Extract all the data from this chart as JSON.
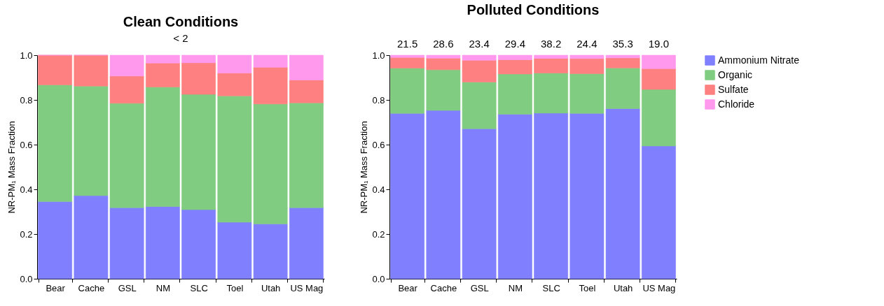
{
  "chart_data": [
    {
      "type": "bar",
      "stacked": true,
      "title": "Clean Conditions",
      "annotations": [
        "< 2"
      ],
      "ylabel": "NR-PM₁ Mass Fraction",
      "categories": [
        "Bear",
        "Cache",
        "GSL",
        "NM",
        "SLC",
        "Toel",
        "Utah",
        "US Mag"
      ],
      "ylim": [
        0,
        1
      ],
      "yticks": [
        {
          "value": 0,
          "label": "0.0"
        },
        {
          "value": 0.2,
          "label": "0.2"
        },
        {
          "value": 0.4,
          "label": "0.4"
        },
        {
          "value": 0.6,
          "label": "0.6"
        },
        {
          "value": 0.8,
          "label": "0.8"
        },
        {
          "value": 1,
          "label": "1.0"
        }
      ],
      "grid": false,
      "legend": "right",
      "series": [
        {
          "name": "Ammonium Nitrate",
          "color": "#8080ff",
          "values": [
            0.345,
            0.372,
            0.318,
            0.323,
            0.309,
            0.253,
            0.245,
            0.318
          ]
        },
        {
          "name": "Organic",
          "color": "#80cc80",
          "values": [
            0.522,
            0.49,
            0.467,
            0.535,
            0.516,
            0.565,
            0.537,
            0.469
          ]
        },
        {
          "name": "Sulfate",
          "color": "#ff8080",
          "values": [
            0.133,
            0.138,
            0.122,
            0.107,
            0.141,
            0.102,
            0.164,
            0.102
          ]
        },
        {
          "name": "Chloride",
          "color": "#ff99ee",
          "values": [
            0,
            0,
            0.093,
            0.035,
            0.034,
            0.08,
            0.054,
            0.111
          ]
        }
      ]
    },
    {
      "type": "bar",
      "stacked": true,
      "title": "Polluted Conditions",
      "ylabel": "NR-PM₁ Mass Fraction",
      "categories": [
        "Bear",
        "Cache",
        "GSL",
        "NM",
        "SLC",
        "Toel",
        "Utah",
        "US Mag"
      ],
      "ylim": [
        0,
        1
      ],
      "yticks": [
        {
          "value": 0,
          "label": "0.0"
        },
        {
          "value": 0.2,
          "label": "0.2"
        },
        {
          "value": 0.4,
          "label": "0.4"
        },
        {
          "value": 0.6,
          "label": "0.6"
        },
        {
          "value": 0.8,
          "label": "0.8"
        },
        {
          "value": 1,
          "label": "1.0"
        }
      ],
      "grid": false,
      "legend": "right",
      "annotations": [
        {
          "text": "21.5",
          "x": "Bear",
          "y": 1
        },
        {
          "text": "28.6",
          "x": "Cache",
          "y": 1
        },
        {
          "text": "23.4",
          "x": "GSL",
          "y": 1
        },
        {
          "text": "29.4",
          "x": "NM",
          "y": 1
        },
        {
          "text": "38.2",
          "x": "SLC",
          "y": 1
        },
        {
          "text": "24.4",
          "x": "Toel",
          "y": 1
        },
        {
          "text": "35.3",
          "x": "Utah",
          "y": 1
        },
        {
          "text": "19.0",
          "x": "US Mag",
          "y": 1
        }
      ],
      "series": [
        {
          "name": "Ammonium Nitrate",
          "color": "#8080ff",
          "values": [
            0.74,
            0.753,
            0.671,
            0.736,
            0.741,
            0.74,
            0.761,
            0.594
          ]
        },
        {
          "name": "Organic",
          "color": "#80cc80",
          "values": [
            0.202,
            0.182,
            0.209,
            0.18,
            0.179,
            0.177,
            0.182,
            0.253
          ]
        },
        {
          "name": "Sulfate",
          "color": "#ff8080",
          "values": [
            0.048,
            0.052,
            0.097,
            0.064,
            0.066,
            0.068,
            0.045,
            0.093
          ]
        },
        {
          "name": "Chloride",
          "color": "#ff99ee",
          "values": [
            0.01,
            0.013,
            0.023,
            0.02,
            0.014,
            0.015,
            0.012,
            0.06
          ]
        }
      ]
    }
  ]
}
